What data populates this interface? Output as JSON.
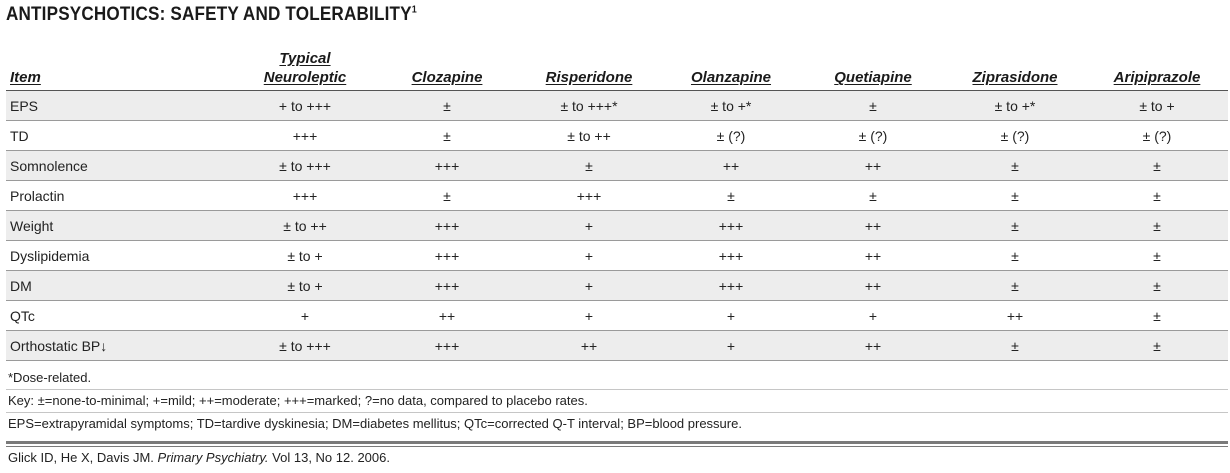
{
  "title": "ANTIPSYCHOTICS: SAFETY AND TOLERABILITY",
  "title_superscript": "1",
  "table": {
    "item_header": "Item",
    "drug_headers": [
      [
        "Typical",
        "Neuroleptic"
      ],
      [
        "Clozapine"
      ],
      [
        "Risperidone"
      ],
      [
        "Olanzapine"
      ],
      [
        "Quetiapine"
      ],
      [
        "Ziprasidone"
      ],
      [
        "Aripiprazole"
      ]
    ],
    "rows": [
      {
        "item": "EPS",
        "values": [
          "+ to +++",
          "±",
          "± to +++*",
          "± to +*",
          "±",
          "± to +*",
          "± to +"
        ]
      },
      {
        "item": "TD",
        "values": [
          "+++",
          "±",
          "± to ++",
          "± (?)",
          "± (?)",
          "± (?)",
          "± (?)"
        ]
      },
      {
        "item": "Somnolence",
        "values": [
          "± to +++",
          "+++",
          "±",
          "++",
          "++",
          "±",
          "±"
        ]
      },
      {
        "item": "Prolactin",
        "values": [
          "+++",
          "±",
          "+++",
          "±",
          "±",
          "±",
          "±"
        ]
      },
      {
        "item": "Weight",
        "values": [
          "± to ++",
          "+++",
          "+",
          "+++",
          "++",
          "±",
          "±"
        ]
      },
      {
        "item": "Dyslipidemia",
        "values": [
          "± to +",
          "+++",
          "+",
          "+++",
          "++",
          "±",
          "±"
        ]
      },
      {
        "item": "DM",
        "values": [
          "± to +",
          "+++",
          "+",
          "+++",
          "++",
          "±",
          "±"
        ]
      },
      {
        "item": "QTc",
        "values": [
          "+",
          "++",
          "+",
          "+",
          "+",
          "++",
          "±"
        ]
      },
      {
        "item": "Orthostatic BP↓",
        "values": [
          "± to +++",
          "+++",
          "++",
          "+",
          "++",
          "±",
          "±"
        ]
      }
    ]
  },
  "notes": {
    "dose": "*Dose-related.",
    "key": "Key: ±=none-to-minimal; +=mild; ++=moderate; +++=marked; ?=no data, compared to placebo rates.",
    "abbreviations": "EPS=extrapyramidal symptoms; TD=tardive dyskinesia; DM=diabetes mellitus; QTc=corrected Q-T interval; BP=blood pressure."
  },
  "citation": {
    "authors": "Glick ID, He X, Davis JM.",
    "journal": "Primary Psychiatry.",
    "details": "Vol 13, No 12. 2006."
  }
}
